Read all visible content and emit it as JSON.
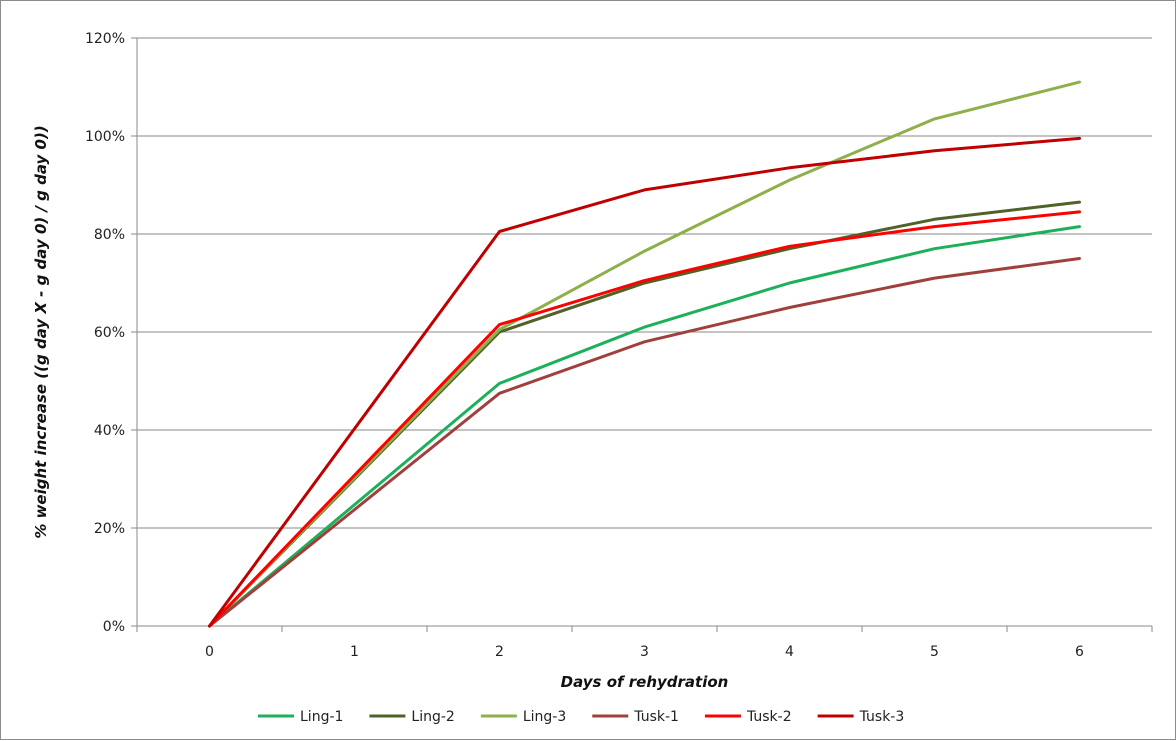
{
  "chart_data": {
    "type": "line",
    "title": "",
    "xlabel": "Days of rehydration",
    "ylabel": "% weight increase ((g day X - g day 0) / g day 0))",
    "x": [
      0,
      1,
      2,
      3,
      4,
      5,
      6
    ],
    "x_tick_labels": [
      "0",
      "1",
      "2",
      "3",
      "4",
      "5",
      "6"
    ],
    "xlim": [
      -0.5,
      6.5
    ],
    "ylim": [
      0,
      1.2
    ],
    "y_ticks": [
      0,
      0.2,
      0.4,
      0.6,
      0.8,
      1.0,
      1.2
    ],
    "y_tick_labels": [
      "0%",
      "20%",
      "40%",
      "60%",
      "80%",
      "100%",
      "120%"
    ],
    "grid": "horizontal",
    "legend_position": "bottom",
    "series": [
      {
        "name": "Ling-1",
        "color": "#1db05a",
        "x": [
          0,
          2,
          3,
          4,
          5,
          6
        ],
        "values": [
          0,
          0.495,
          0.61,
          0.7,
          0.77,
          0.815
        ]
      },
      {
        "name": "Ling-2",
        "color": "#4f6228",
        "x": [
          0,
          2,
          3,
          4,
          5,
          6
        ],
        "values": [
          0,
          0.6,
          0.7,
          0.77,
          0.83,
          0.865
        ]
      },
      {
        "name": "Ling-3",
        "color": "#8db04a",
        "x": [
          0,
          2,
          3,
          4,
          5,
          6
        ],
        "values": [
          0,
          0.605,
          0.765,
          0.91,
          1.035,
          1.11
        ]
      },
      {
        "name": "Tusk-1",
        "color": "#a0403c",
        "x": [
          0,
          2,
          3,
          4,
          5,
          6
        ],
        "values": [
          0,
          0.475,
          0.58,
          0.65,
          0.71,
          0.75
        ]
      },
      {
        "name": "Tusk-2",
        "color": "#ff0000",
        "x": [
          0,
          2,
          3,
          4,
          5,
          6
        ],
        "values": [
          0,
          0.615,
          0.705,
          0.775,
          0.815,
          0.845
        ]
      },
      {
        "name": "Tusk-3",
        "color": "#c00000",
        "x": [
          0,
          2,
          3,
          4,
          5,
          6
        ],
        "values": [
          0,
          0.805,
          0.89,
          0.935,
          0.97,
          0.995
        ]
      }
    ]
  }
}
